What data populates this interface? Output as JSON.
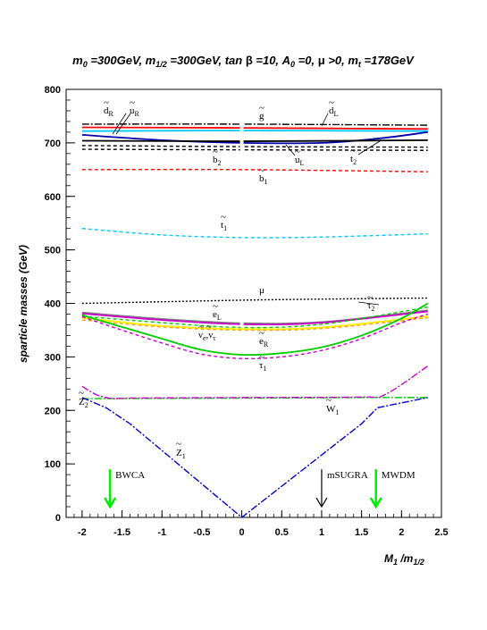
{
  "title": "m₀ =300GeV, m₁/₂ =300GeV, tan β =10, A₀ =0, μ >0, mₜ =178GeV",
  "chart_data": {
    "type": "line",
    "xlabel": "M₁ /m₁/₂",
    "ylabel": "sparticle masses (GeV)",
    "xlim": [
      -2.2,
      2.5
    ],
    "ylim": [
      0,
      800
    ],
    "x_ticks": [
      -2,
      -1.5,
      -1,
      -0.5,
      0,
      0.5,
      1,
      1.5,
      2,
      2.5
    ],
    "y_ticks": [
      0,
      100,
      200,
      300,
      400,
      500,
      600,
      700,
      800
    ],
    "grid": false,
    "series": [
      {
        "label": "d̃R",
        "color": "#000000",
        "dash": "8 2 2 2",
        "x": [
          -2,
          0,
          2.33
        ],
        "y": [
          735,
          735,
          733
        ]
      },
      {
        "label": "",
        "color": "#ff0000",
        "dash": "",
        "x": [
          -2,
          0,
          2.33
        ],
        "y": [
          729,
          728,
          726
        ]
      },
      {
        "label": "ũR",
        "color": "#00c8ff",
        "dash": "",
        "x": [
          -2,
          0,
          2.33
        ],
        "y": [
          722,
          723,
          722
        ]
      },
      {
        "label": "ũL",
        "color": "#0000aa",
        "dash": "",
        "x": [
          -2,
          -1,
          0,
          1,
          1.7,
          2.33
        ],
        "y": [
          715,
          705,
          700,
          700,
          708,
          720
        ]
      },
      {
        "label": "",
        "color": "#000000",
        "dash": "",
        "x": [
          -2,
          0,
          2.33
        ],
        "y": [
          704,
          703,
          705
        ]
      },
      {
        "label": "b̃2",
        "color": "#000000",
        "dash": "4 3",
        "x": [
          -2,
          0,
          2.33
        ],
        "y": [
          695,
          693,
          692
        ]
      },
      {
        "label": "",
        "color": "#000000",
        "dash": "4 3",
        "x": [
          -2,
          0,
          2.33
        ],
        "y": [
          688,
          687,
          686
        ]
      },
      {
        "label": "b̃1",
        "color": "#ff0000",
        "dash": "4 3",
        "x": [
          -2,
          0,
          2.33
        ],
        "y": [
          650,
          650,
          646
        ]
      },
      {
        "label": "t̃1",
        "color": "#00c8ff",
        "dash": "4 3",
        "x": [
          -2,
          -1,
          0,
          1,
          2.33
        ],
        "y": [
          540,
          528,
          523,
          524,
          530
        ]
      },
      {
        "label": "μ",
        "color": "#000000",
        "dash": "2 2",
        "x": [
          -2,
          -1,
          0,
          1,
          2.33
        ],
        "y": [
          400,
          403,
          406,
          408,
          410
        ]
      },
      {
        "label": "ẽL",
        "color": "#808080",
        "dash": "",
        "x": [
          -2,
          -1,
          0,
          1,
          2.33
        ],
        "y": [
          383,
          371,
          363,
          365,
          387
        ]
      },
      {
        "label": "",
        "color": "#cc00cc",
        "dash": "",
        "x": [
          -2,
          -1,
          0,
          1,
          2.33
        ],
        "y": [
          381,
          369,
          361,
          364,
          385
        ]
      },
      {
        "label": "ν̃e,ν̃τ",
        "color": "#ffee00",
        "dash": "",
        "x": [
          -2,
          -1,
          0,
          1,
          2.33
        ],
        "y": [
          373,
          358,
          352,
          355,
          376
        ]
      },
      {
        "label": "",
        "color": "#ffa500",
        "dash": "4 3",
        "x": [
          -2,
          -1,
          0,
          1,
          2.33
        ],
        "y": [
          369,
          356,
          350,
          353,
          373
        ]
      },
      {
        "label": "τ̃2",
        "color": "#00cc00",
        "dash": "4 3",
        "x": [
          -2,
          -1,
          0,
          1,
          2.33
        ],
        "y": [
          376,
          364,
          355,
          361,
          393
        ]
      },
      {
        "label": "ẽR",
        "color": "#00cc00",
        "dash": "",
        "x": [
          -2,
          -1.5,
          -1,
          -0.5,
          0,
          0.5,
          1,
          1.5,
          2,
          2.33
        ],
        "y": [
          378,
          356,
          334,
          313,
          304,
          307,
          318,
          340,
          372,
          400
        ]
      },
      {
        "label": "τ̃1",
        "color": "#cc00cc",
        "dash": "4 3",
        "x": [
          -2,
          -1.5,
          -1,
          -0.5,
          0,
          0.5,
          1,
          1.5,
          2,
          2.33
        ],
        "y": [
          375,
          350,
          326,
          305,
          297,
          300,
          312,
          334,
          364,
          380
        ]
      },
      {
        "label": "W̃1",
        "color": "#00cc00",
        "dash": "8 2 2 2",
        "x": [
          -2,
          0,
          1.5,
          2,
          2.33
        ],
        "y": [
          222,
          223,
          224,
          224,
          224
        ]
      },
      {
        "label": "Z̃2",
        "color": "#cc00cc",
        "dash": "8 2 2 2",
        "x": [
          -2,
          -1.8,
          -1.6,
          -1.4,
          0,
          1.5,
          1.8,
          2.33
        ],
        "y": [
          245,
          228,
          222,
          223,
          224,
          225,
          230,
          283
        ]
      },
      {
        "label": "Z̃1",
        "color": "#0000cc",
        "dash": "8 2 2 2",
        "x": [
          -2,
          -1.7,
          -1.4,
          0,
          1.5,
          1.7,
          2.33
        ],
        "y": [
          224,
          205,
          175,
          0,
          175,
          205,
          224
        ]
      }
    ],
    "arrows": [
      {
        "label": "BWCA",
        "x": -1.65,
        "color": "#00ee00"
      },
      {
        "label": "mSUGRA",
        "x": 1.0,
        "color": "#000000"
      },
      {
        "label": "MWDM",
        "x": 1.68,
        "color": "#00ee00"
      }
    ]
  }
}
